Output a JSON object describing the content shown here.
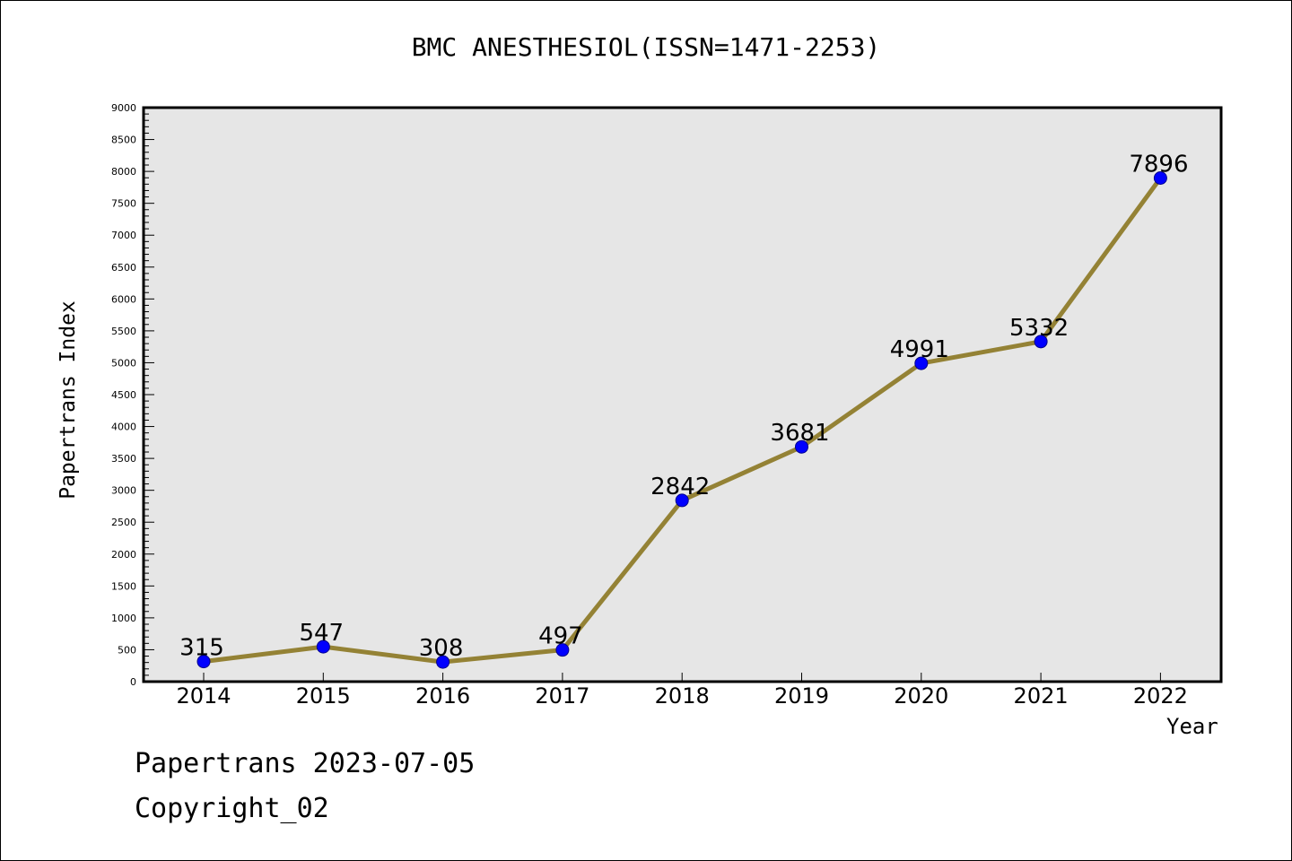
{
  "chart_data": {
    "type": "line",
    "title": "BMC ANESTHESIOL(ISSN=1471-2253)",
    "xlabel": "Year",
    "ylabel": "Papertrans Index",
    "categories": [
      "2014",
      "2015",
      "2016",
      "2017",
      "2018",
      "2019",
      "2020",
      "2021",
      "2022"
    ],
    "series": [
      {
        "values": [
          315,
          547,
          308,
          497,
          2842,
          3681,
          4991,
          5332,
          7896
        ]
      }
    ],
    "ylim": [
      0,
      9000
    ],
    "yticks": [
      0,
      500,
      1000,
      1500,
      2000,
      2500,
      3000,
      3500,
      4000,
      4500,
      5000,
      5500,
      6000,
      6500,
      7000,
      7500,
      8000,
      8500,
      9000
    ],
    "grid": false,
    "colors": {
      "line": "#948235",
      "marker": "#0000ff",
      "plot_background": "#e6e6e6"
    }
  },
  "footer": {
    "line1": "Papertrans 2023-07-05",
    "line2": "Copyright_02"
  }
}
